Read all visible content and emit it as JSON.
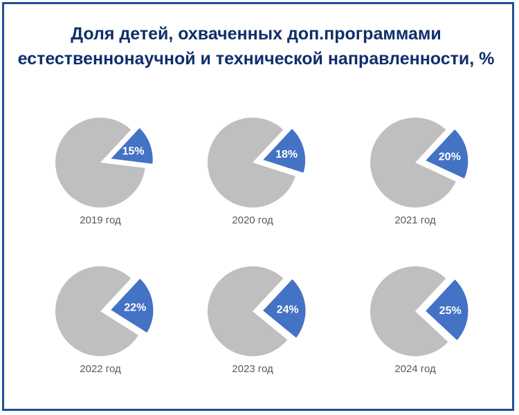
{
  "title": {
    "line1": "Доля детей, охваченных доп.программами",
    "line2": "естественнонаучной и технической направленности, %"
  },
  "colors": {
    "border": "#1f4e96",
    "title": "#0f2f6b",
    "highlight": "#4472c4",
    "rest": "#bfbfbf",
    "caption": "#595959"
  },
  "chart_data": {
    "type": "pie",
    "title": "Доля детей, охваченных доп.программами естественнонаучной и технической направленности, %",
    "charts": [
      {
        "caption": "2019 год",
        "value": 15,
        "label": "15%"
      },
      {
        "caption": "2020 год",
        "value": 18,
        "label": "18%"
      },
      {
        "caption": "2021 год",
        "value": 20,
        "label": "20%"
      },
      {
        "caption": "2022 год",
        "value": 22,
        "label": "22%"
      },
      {
        "caption": "2023 год",
        "value": 24,
        "label": "24%"
      },
      {
        "caption": "2024 год",
        "value": 25,
        "label": "25%"
      }
    ]
  }
}
